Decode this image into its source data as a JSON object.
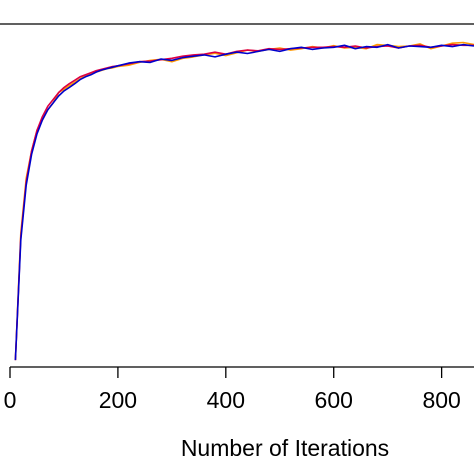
{
  "chart_data": {
    "type": "line",
    "title": "",
    "xlabel": "Number of Iterations",
    "ylabel": "",
    "xlim": [
      0,
      860
    ],
    "ylim": [
      0,
      1.0
    ],
    "x_ticks": [
      0,
      200,
      400,
      600,
      800
    ],
    "x_tick_labels": [
      "0",
      "200",
      "400",
      "600",
      "800"
    ],
    "grid": false,
    "legend": "none",
    "series": [
      {
        "color": "#ff9900",
        "x": [
          10,
          20,
          30,
          40,
          50,
          60,
          70,
          80,
          90,
          100,
          110,
          120,
          130,
          140,
          150,
          160,
          170,
          180,
          190,
          200,
          220,
          240,
          260,
          280,
          300,
          320,
          340,
          360,
          380,
          400,
          420,
          440,
          460,
          480,
          500,
          520,
          540,
          560,
          580,
          600,
          620,
          640,
          660,
          680,
          700,
          720,
          740,
          760,
          780,
          800,
          820,
          840,
          860
        ],
        "values": [
          0.02,
          0.39,
          0.55,
          0.63,
          0.69,
          0.72,
          0.75,
          0.77,
          0.8,
          0.81,
          0.82,
          0.83,
          0.84,
          0.85,
          0.856,
          0.86,
          0.865,
          0.87,
          0.872,
          0.876,
          0.88,
          0.888,
          0.894,
          0.897,
          0.89,
          0.9,
          0.904,
          0.91,
          0.915,
          0.908,
          0.916,
          0.924,
          0.92,
          0.926,
          0.93,
          0.924,
          0.928,
          0.934,
          0.93,
          0.937,
          0.93,
          0.932,
          0.928,
          0.94,
          0.938,
          0.934,
          0.936,
          0.942,
          0.928,
          0.936,
          0.944,
          0.946,
          0.94
        ]
      },
      {
        "color": "#dd0044",
        "x": [
          10,
          20,
          30,
          40,
          50,
          60,
          70,
          80,
          90,
          100,
          110,
          120,
          130,
          140,
          150,
          160,
          170,
          180,
          190,
          200,
          220,
          240,
          260,
          280,
          300,
          320,
          340,
          360,
          380,
          400,
          420,
          440,
          460,
          480,
          500,
          520,
          540,
          560,
          580,
          600,
          620,
          640,
          660,
          680,
          700,
          720,
          740,
          760,
          780,
          800,
          820,
          840,
          860
        ],
        "values": [
          0.02,
          0.38,
          0.54,
          0.63,
          0.69,
          0.73,
          0.76,
          0.78,
          0.8,
          0.815,
          0.826,
          0.836,
          0.846,
          0.852,
          0.858,
          0.864,
          0.868,
          0.872,
          0.876,
          0.878,
          0.884,
          0.89,
          0.892,
          0.896,
          0.9,
          0.906,
          0.91,
          0.912,
          0.918,
          0.912,
          0.92,
          0.924,
          0.922,
          0.928,
          0.926,
          0.928,
          0.93,
          0.932,
          0.932,
          0.934,
          0.932,
          0.936,
          0.93,
          0.934,
          0.936,
          0.93,
          0.936,
          0.938,
          0.932,
          0.936,
          0.94,
          0.938,
          0.938
        ]
      },
      {
        "color": "#0000cc",
        "x": [
          10,
          20,
          30,
          40,
          50,
          60,
          70,
          80,
          90,
          100,
          110,
          120,
          130,
          140,
          150,
          160,
          170,
          180,
          190,
          200,
          220,
          240,
          260,
          280,
          300,
          320,
          340,
          360,
          380,
          400,
          420,
          440,
          460,
          480,
          500,
          520,
          540,
          560,
          580,
          600,
          620,
          640,
          660,
          680,
          700,
          720,
          740,
          760,
          780,
          800,
          820,
          840,
          860
        ],
        "values": [
          0.02,
          0.37,
          0.53,
          0.62,
          0.68,
          0.72,
          0.75,
          0.77,
          0.79,
          0.805,
          0.815,
          0.826,
          0.838,
          0.846,
          0.852,
          0.86,
          0.866,
          0.87,
          0.874,
          0.878,
          0.886,
          0.89,
          0.888,
          0.898,
          0.894,
          0.902,
          0.906,
          0.91,
          0.904,
          0.912,
          0.918,
          0.914,
          0.92,
          0.926,
          0.92,
          0.928,
          0.932,
          0.926,
          0.93,
          0.932,
          0.938,
          0.928,
          0.934,
          0.932,
          0.94,
          0.93,
          0.936,
          0.934,
          0.932,
          0.938,
          0.934,
          0.94,
          0.936
        ]
      }
    ]
  }
}
